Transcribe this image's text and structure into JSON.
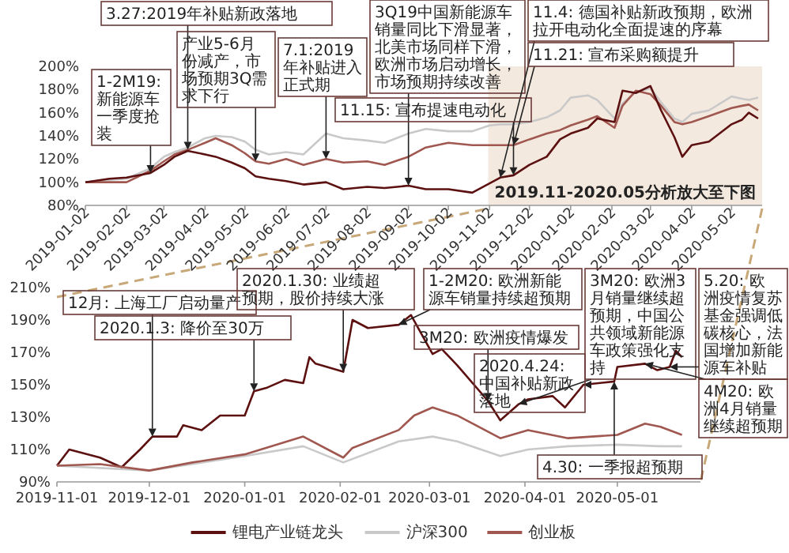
{
  "chart_data": [
    {
      "type": "line",
      "x": [
        "2019-01-02",
        "2019-01-20",
        "2019-02-02",
        "2019-02-20",
        "2019-03-02",
        "2019-03-10",
        "2019-03-20",
        "2019-04-02",
        "2019-04-10",
        "2019-04-22",
        "2019-05-02",
        "2019-05-10",
        "2019-05-20",
        "2019-06-02",
        "2019-06-15",
        "2019-07-02",
        "2019-07-15",
        "2019-08-02",
        "2019-08-15",
        "2019-09-02",
        "2019-09-15",
        "2019-10-02",
        "2019-10-20",
        "2019-11-02",
        "2019-11-10",
        "2019-11-20",
        "2019-12-02",
        "2019-12-15",
        "2019-12-25",
        "2020-01-02",
        "2020-01-15",
        "2020-01-22",
        "2020-02-04",
        "2020-02-10",
        "2020-02-20",
        "2020-03-02",
        "2020-03-10",
        "2020-03-20",
        "2020-03-26",
        "2020-04-02",
        "2020-04-15",
        "2020-05-02",
        "2020-05-10",
        "2020-05-15",
        "2020-05-22"
      ],
      "series": [
        {
          "color": "#c9c9c9",
          "values": [
            100,
            102,
            103,
            112,
            122,
            126,
            130,
            138,
            140,
            139,
            135,
            128,
            124,
            126,
            124,
            142,
            138,
            136,
            134,
            142,
            146,
            144,
            144,
            149,
            150,
            150,
            152,
            156,
            162,
            173,
            175,
            171,
            155,
            168,
            178,
            181,
            169,
            155,
            152,
            159,
            162,
            174,
            172,
            171,
            173
          ]
        },
        {
          "color": "#a0574f",
          "values": [
            100,
            100,
            100,
            110,
            118,
            124,
            128,
            134,
            138,
            132,
            125,
            118,
            116,
            120,
            115,
            120,
            117,
            118,
            115,
            122,
            130,
            134,
            132,
            132,
            132,
            132,
            137,
            142,
            145,
            149,
            154,
            157,
            147,
            166,
            179,
            176,
            166,
            152,
            150,
            152,
            157,
            164,
            166,
            167,
            162
          ]
        },
        {
          "color": "#5c1010",
          "values": [
            100,
            103,
            104,
            108,
            115,
            122,
            127,
            124,
            122,
            117,
            112,
            105,
            103,
            101,
            98,
            100,
            94,
            96,
            95,
            97,
            94,
            94,
            91,
            99,
            104,
            106,
            115,
            122,
            137,
            142,
            147,
            155,
            152,
            179,
            177,
            183,
            162,
            139,
            122,
            132,
            135,
            150,
            154,
            160,
            155
          ]
        }
      ],
      "xlim": [
        "2019-01-02",
        "2020-05-25"
      ],
      "xticks": [
        "2019-01-02",
        "2019-02-02",
        "2019-03-02",
        "2019-04-02",
        "2019-05-02",
        "2019-06-02",
        "2019-07-02",
        "2019-08-02",
        "2019-09-02",
        "2019-10-02",
        "2019-11-02",
        "2019-12-02",
        "2020-01-02",
        "2020-02-02",
        "2020-03-02",
        "2020-04-02",
        "2020-05-02"
      ],
      "ylim": [
        80,
        200
      ],
      "yticks": [
        {
          "value": 80,
          "label": "80%"
        },
        {
          "value": 100,
          "label": "100%"
        },
        {
          "value": 120,
          "label": "120%"
        },
        {
          "value": 140,
          "label": "140%"
        },
        {
          "value": 160,
          "label": "160%"
        },
        {
          "value": 180,
          "label": "180%"
        },
        {
          "value": 200,
          "label": "200%"
        }
      ],
      "grid": false,
      "legend": false,
      "bands": [
        {
          "axis": "x",
          "from": "2019-11-01",
          "to": "2020-05-25",
          "label": "2019.11-2020.05分析放大至下图",
          "color": "#f3e9df"
        }
      ],
      "annotations": [
        {
          "text": "1-2M19: 新能源车一季度抢装",
          "x": "2019-02-20",
          "y": 108
        },
        {
          "text": "3.27:2019年补贴新政落地",
          "x": "2019-03-20",
          "y": 128
        },
        {
          "text": "产业5-6月份减产，市场预期3Q需求下行",
          "x": "2019-05-10",
          "y": 118
        },
        {
          "text": "7.1:2019年补贴进入正式期",
          "x": "2019-07-02",
          "y": 120
        },
        {
          "text": "3Q19中国新能源车销量同比下滑显著，北美市场同样下滑，欧洲市场启动增长，市场预期持续改善",
          "x": "2019-09-02",
          "y": 97
        },
        {
          "text": "11.4: 德国补贴新政预期，欧洲拉开电动化全面提速的序幕",
          "x": "2019-11-10",
          "y": 104
        },
        {
          "text": "11.15: 宣布提速电动化",
          "x": "2019-11-20",
          "y": 106
        },
        {
          "text": "11.21: 宣布采购额提升",
          "x": "2019-11-20",
          "y": 132
        }
      ]
    },
    {
      "type": "line",
      "series": [
        {
          "name": "锂电产业链龙头",
          "color": "#5c1010",
          "x": [
            "2019-11-01",
            "2019-11-05",
            "2019-11-15",
            "2019-11-22",
            "2019-11-28",
            "2019-12-02",
            "2019-12-10",
            "2019-12-12",
            "2019-12-18",
            "2019-12-24",
            "2020-01-01",
            "2020-01-04",
            "2020-01-08",
            "2020-01-14",
            "2020-01-20",
            "2020-01-22",
            "2020-01-24",
            "2020-02-02",
            "2020-02-05",
            "2020-02-10",
            "2020-02-20",
            "2020-02-24",
            "2020-03-02",
            "2020-03-05",
            "2020-03-10",
            "2020-03-20",
            "2020-03-24",
            "2020-03-30",
            "2020-04-02",
            "2020-04-10",
            "2020-04-14",
            "2020-04-20",
            "2020-04-30",
            "2020-05-01",
            "2020-05-10",
            "2020-05-14",
            "2020-05-18",
            "2020-05-20",
            "2020-05-22"
          ],
          "values": [
            100,
            110,
            105,
            99,
            110,
            118,
            118,
            125,
            122,
            131,
            131,
            146,
            148,
            153,
            151,
            167,
            163,
            158,
            190,
            185,
            187,
            193,
            169,
            172,
            162,
            140,
            128,
            138,
            141,
            143,
            136,
            150,
            152,
            161,
            163,
            159,
            161,
            171,
            167
          ]
        },
        {
          "name": "沪深300",
          "color": "#c9c9c9",
          "x": [
            "2019-11-01",
            "2019-12-01",
            "2020-01-01",
            "2020-01-20",
            "2020-02-02",
            "2020-02-20",
            "2020-03-02",
            "2020-03-10",
            "2020-03-24",
            "2020-04-02",
            "2020-04-15",
            "2020-05-01",
            "2020-05-15",
            "2020-05-22"
          ],
          "values": [
            100,
            97,
            106,
            112,
            102,
            115,
            118,
            115,
            106,
            110,
            112,
            113,
            112,
            112
          ]
        },
        {
          "name": "创业板",
          "color": "#a0574f",
          "x": [
            "2019-11-01",
            "2019-11-15",
            "2019-12-01",
            "2019-12-15",
            "2020-01-01",
            "2020-01-20",
            "2020-02-02",
            "2020-02-05",
            "2020-02-20",
            "2020-02-25",
            "2020-03-02",
            "2020-03-10",
            "2020-03-24",
            "2020-04-02",
            "2020-04-15",
            "2020-05-01",
            "2020-05-10",
            "2020-05-15",
            "2020-05-22"
          ],
          "values": [
            100,
            101,
            97,
            102,
            107,
            118,
            105,
            111,
            122,
            131,
            136,
            131,
            117,
            122,
            117,
            119,
            126,
            124,
            119
          ]
        }
      ],
      "xlim": [
        "2019-11-01",
        "2020-05-28"
      ],
      "xticks": [
        "2019-11-01",
        "2019-12-01",
        "2020-01-01",
        "2020-02-01",
        "2020-03-01",
        "2020-04-01",
        "2020-05-01"
      ],
      "ylim": [
        90,
        210
      ],
      "yticks": [
        {
          "value": 90,
          "label": "90%"
        },
        {
          "value": 110,
          "label": "110%"
        },
        {
          "value": 130,
          "label": "130%"
        },
        {
          "value": 150,
          "label": "150%"
        },
        {
          "value": 170,
          "label": "170%"
        },
        {
          "value": 190,
          "label": "190%"
        },
        {
          "value": 210,
          "label": "210%"
        }
      ],
      "grid": false,
      "legend": "bottom",
      "annotations": [
        {
          "text": "12月: 上海工厂启动量产",
          "x": "2019-12-02",
          "y": 118
        },
        {
          "text": "2020.1.3: 降价至30万",
          "x": "2020-01-04",
          "y": 146
        },
        {
          "text": "2020.1.30: 业绩超预期，股价持续大涨",
          "x": "2020-02-02",
          "y": 158
        },
        {
          "text": "1-2M20: 欧洲新能源车销量持续超预期",
          "x": "2020-02-20",
          "y": 187
        },
        {
          "text": "3M20: 欧洲疫情爆发",
          "x": "2020-03-20",
          "y": 140
        },
        {
          "text": "3M20: 欧洲3月销量继续超预期，中国公共领域新能源车政策强化支持",
          "x": "2020-03-30",
          "y": 138
        },
        {
          "text": "2020.4.24: 中国补贴新政落地",
          "x": "2020-04-20",
          "y": 150
        },
        {
          "text": "4M20: 欧洲4月销量继续超预期",
          "x": "2020-05-10",
          "y": 163
        },
        {
          "text": "5.20: 欧洲疫情复苏基金强调低碳核心，法国增加新能源车补贴",
          "x": "2020-05-18",
          "y": 161
        },
        {
          "text": "4.30: 一季报超预期",
          "x": "2020-04-30",
          "y": 152
        }
      ]
    }
  ]
}
